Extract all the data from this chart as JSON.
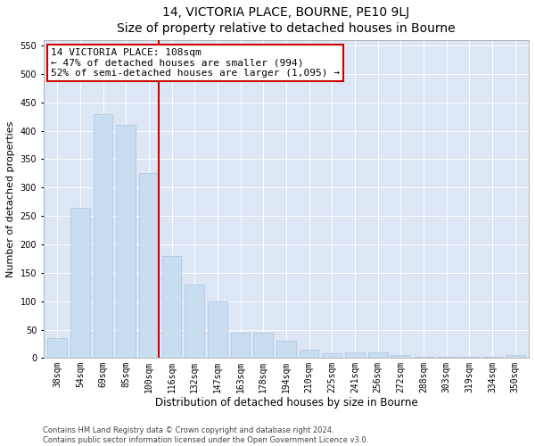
{
  "title": "14, VICTORIA PLACE, BOURNE, PE10 9LJ",
  "subtitle": "Size of property relative to detached houses in Bourne",
  "xlabel": "Distribution of detached houses by size in Bourne",
  "ylabel": "Number of detached properties",
  "categories": [
    "38sqm",
    "54sqm",
    "69sqm",
    "85sqm",
    "100sqm",
    "116sqm",
    "132sqm",
    "147sqm",
    "163sqm",
    "178sqm",
    "194sqm",
    "210sqm",
    "225sqm",
    "241sqm",
    "256sqm",
    "272sqm",
    "288sqm",
    "303sqm",
    "319sqm",
    "334sqm",
    "350sqm"
  ],
  "values": [
    35,
    265,
    430,
    410,
    325,
    180,
    130,
    100,
    45,
    45,
    30,
    15,
    8,
    10,
    10,
    5,
    3,
    2,
    2,
    2,
    5
  ],
  "bar_color": "#c9ddf0",
  "bar_edgecolor": "#a8c4e0",
  "vline_color": "#cc0000",
  "annotation_text": "14 VICTORIA PLACE: 108sqm\n← 47% of detached houses are smaller (994)\n52% of semi-detached houses are larger (1,095) →",
  "annotation_box_facecolor": "#ffffff",
  "annotation_box_edgecolor": "#cc0000",
  "ylim": [
    0,
    560
  ],
  "yticks": [
    0,
    50,
    100,
    150,
    200,
    250,
    300,
    350,
    400,
    450,
    500,
    550
  ],
  "background_color": "#dde6f5",
  "footer_line1": "Contains HM Land Registry data © Crown copyright and database right 2024.",
  "footer_line2": "Contains public sector information licensed under the Open Government Licence v3.0.",
  "title_fontsize": 10,
  "xlabel_fontsize": 8.5,
  "ylabel_fontsize": 8,
  "tick_fontsize": 7,
  "annotation_fontsize": 8,
  "footer_fontsize": 6,
  "figwidth": 6.0,
  "figheight": 5.0,
  "dpi": 100
}
